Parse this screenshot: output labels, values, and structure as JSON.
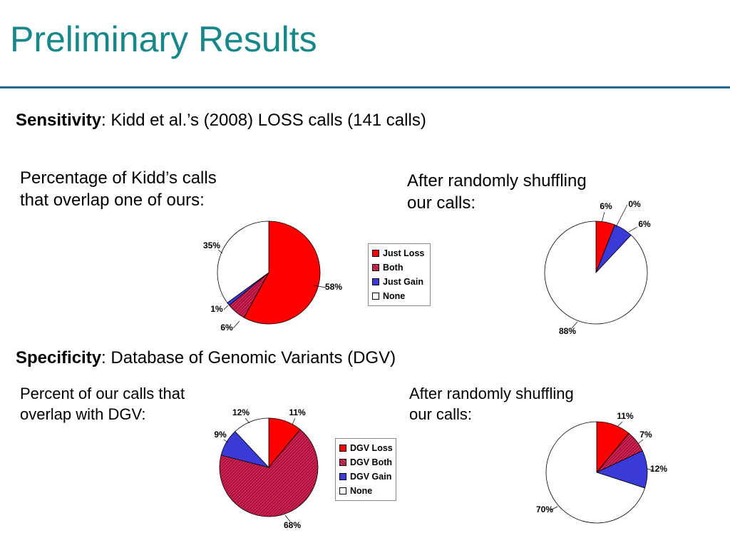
{
  "title": "Preliminary Results",
  "sensitivity": {
    "heading": "Sensitivity",
    "text": ": Kidd et al.’s (2008) LOSS calls (141 calls)",
    "left_caption_l1": "Percentage of Kidd’s calls",
    "left_caption_l2": "that overlap one of ours:",
    "right_caption_l1": "After randomly shuffling",
    "right_caption_l2": "our calls:"
  },
  "specificity": {
    "heading": "Specificity",
    "text": ": Database of Genomic Variants (DGV)",
    "left_caption_l1": "Percent of our calls that",
    "left_caption_l2": "overlap with DGV:",
    "right_caption_l1": "After randomly shuffling",
    "right_caption_l2": "our calls:"
  },
  "legend_sensitivity": [
    {
      "label": "Just Loss",
      "color": "#ff0000",
      "pattern": "solid"
    },
    {
      "label": "Both",
      "color": "#b0103c",
      "pattern": "hatch"
    },
    {
      "label": "Just Gain",
      "color": "#3a3ad6",
      "pattern": "solid"
    },
    {
      "label": "None",
      "color": "#ffffff",
      "pattern": "solid"
    }
  ],
  "legend_specificity": [
    {
      "label": "DGV Loss",
      "color": "#ff0000",
      "pattern": "solid"
    },
    {
      "label": "DGV Both",
      "color": "#b0103c",
      "pattern": "hatch"
    },
    {
      "label": "DGV Gain",
      "color": "#3a3ad6",
      "pattern": "solid"
    },
    {
      "label": "None",
      "color": "#ffffff",
      "pattern": "solid"
    }
  ],
  "chart_data": [
    {
      "type": "pie",
      "categories": [
        "Just Loss",
        "Both",
        "Just Gain",
        "None"
      ],
      "values": [
        58,
        6,
        1,
        35
      ],
      "labels": [
        "58%",
        "6%",
        "1%",
        "35%"
      ]
    },
    {
      "type": "pie",
      "categories": [
        "Just Loss",
        "Both",
        "Just Gain",
        "None"
      ],
      "values": [
        6,
        0,
        6,
        88
      ],
      "labels": [
        "6%",
        "0%",
        "6%",
        "88%"
      ]
    },
    {
      "type": "pie",
      "categories": [
        "DGV Loss",
        "DGV Both",
        "DGV Gain",
        "None"
      ],
      "values": [
        11,
        68,
        9,
        12
      ],
      "labels": [
        "11%",
        "68%",
        "9%",
        "12%"
      ]
    },
    {
      "type": "pie",
      "categories": [
        "DGV Loss",
        "DGV Both",
        "DGV Gain",
        "None"
      ],
      "values": [
        11,
        7,
        12,
        70
      ],
      "labels": [
        "11%",
        "7%",
        "12%",
        "70%"
      ]
    }
  ]
}
